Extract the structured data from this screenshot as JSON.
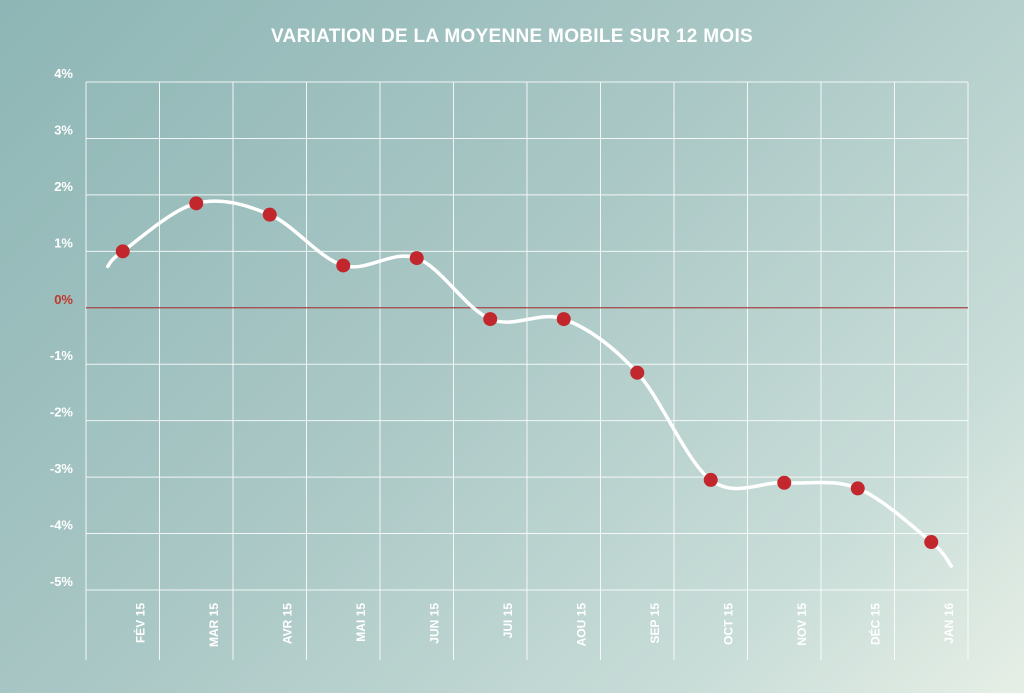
{
  "chart_data": {
    "type": "line",
    "title": "VARIATION DE LA MOYENNE MOBILE SUR 12 MOIS",
    "xlabel": "",
    "ylabel": "",
    "categories": [
      "FÉV 15",
      "MAR 15",
      "AVR 15",
      "MAI 15",
      "JUN 15",
      "JUI 15",
      "AOU 15",
      "SEP 15",
      "OCT 15",
      "NOV 15",
      "DÉC 15",
      "JAN 16"
    ],
    "series": [
      {
        "values": [
          1.0,
          1.85,
          1.65,
          0.75,
          0.88,
          -0.2,
          -0.2,
          -1.15,
          -3.05,
          -3.1,
          -3.2,
          -4.15
        ]
      }
    ],
    "y_ticks": [
      "4%",
      "3%",
      "2%",
      "1%",
      "0%",
      "-1%",
      "-2%",
      "-3%",
      "-4%",
      "-5%"
    ],
    "ylim": [
      -5,
      4
    ],
    "grid": true,
    "legend": "none",
    "colors": {
      "line": "#ffffff",
      "points": "#c1272d",
      "zero_line": "#a34545",
      "zero_label": "#c0392b"
    }
  }
}
